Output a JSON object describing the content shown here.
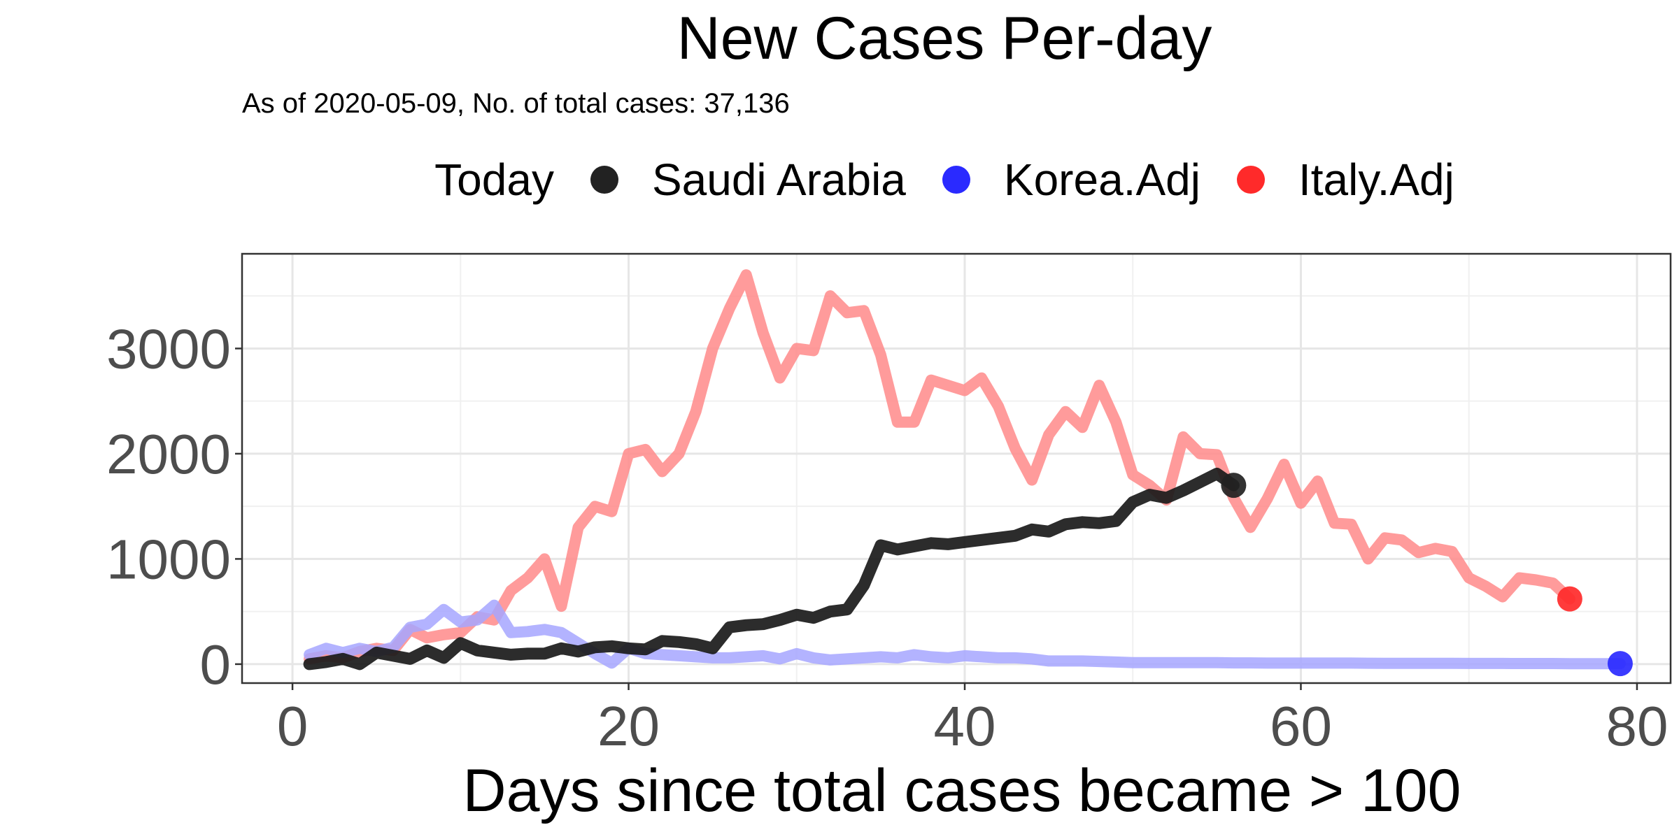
{
  "chart_data": {
    "type": "line",
    "title": "New Cases Per-day",
    "subtitle": "As of 2020-05-09, No. of total cases: 37,136",
    "xlabel": "Days since total cases became > 100",
    "ylabel": "",
    "xlim": [
      -3,
      82
    ],
    "ylim": [
      -180,
      3900
    ],
    "x_ticks": [
      0,
      20,
      40,
      60,
      80
    ],
    "y_ticks": [
      0,
      1000,
      2000,
      3000
    ],
    "grid": true,
    "legend": {
      "title": "Today",
      "position": "top"
    },
    "series": [
      {
        "name": "Italy.Adj",
        "color": "#ff8a8a",
        "marker_color": "#ff2a2a",
        "x": [
          1,
          2,
          3,
          4,
          5,
          6,
          7,
          8,
          9,
          10,
          11,
          12,
          13,
          14,
          15,
          16,
          17,
          18,
          19,
          20,
          21,
          22,
          23,
          24,
          25,
          26,
          27,
          28,
          29,
          30,
          31,
          32,
          33,
          34,
          35,
          36,
          37,
          38,
          39,
          40,
          41,
          42,
          43,
          44,
          45,
          46,
          47,
          48,
          49,
          50,
          51,
          52,
          53,
          54,
          55,
          56,
          57,
          58,
          59,
          60,
          61,
          62,
          63,
          64,
          65,
          66,
          67,
          68,
          69,
          70,
          71,
          72,
          73,
          74,
          75,
          76
        ],
        "values": [
          50,
          80,
          60,
          120,
          150,
          130,
          330,
          250,
          280,
          300,
          450,
          420,
          700,
          820,
          1000,
          550,
          1300,
          1500,
          1450,
          2000,
          2040,
          1830,
          2000,
          2400,
          3000,
          3380,
          3700,
          3150,
          2720,
          3000,
          2980,
          3500,
          3340,
          3360,
          2940,
          2300,
          2300,
          2700,
          2650,
          2600,
          2720,
          2450,
          2050,
          1750,
          2180,
          2400,
          2250,
          2650,
          2300,
          1800,
          1700,
          1560,
          2160,
          2000,
          1990,
          1580,
          1300,
          1570,
          1900,
          1530,
          1740,
          1340,
          1330,
          1000,
          1200,
          1180,
          1060,
          1100,
          1070,
          820,
          740,
          640,
          820,
          800,
          770,
          620
        ]
      },
      {
        "name": "Korea.Adj",
        "color": "#a6a6ff",
        "marker_color": "#2a2aff",
        "x": [
          1,
          2,
          3,
          4,
          5,
          6,
          7,
          8,
          9,
          10,
          11,
          12,
          13,
          14,
          15,
          16,
          17,
          18,
          19,
          20,
          21,
          22,
          23,
          24,
          25,
          26,
          27,
          28,
          29,
          30,
          31,
          32,
          33,
          34,
          35,
          36,
          37,
          38,
          39,
          40,
          41,
          42,
          43,
          44,
          45,
          46,
          47,
          48,
          49,
          50,
          51,
          52,
          53,
          54,
          55,
          56,
          57,
          58,
          59,
          60,
          61,
          62,
          63,
          64,
          65,
          66,
          67,
          68,
          69,
          70,
          71,
          72,
          73,
          74,
          75,
          76,
          77,
          78,
          79
        ],
        "values": [
          90,
          150,
          110,
          150,
          120,
          160,
          350,
          380,
          520,
          400,
          420,
          560,
          300,
          310,
          330,
          300,
          200,
          100,
          10,
          150,
          100,
          90,
          80,
          70,
          60,
          60,
          70,
          80,
          50,
          100,
          60,
          40,
          50,
          60,
          70,
          60,
          90,
          70,
          60,
          80,
          70,
          60,
          60,
          50,
          30,
          30,
          30,
          25,
          20,
          15,
          15,
          15,
          15,
          15,
          15,
          12,
          12,
          10,
          10,
          10,
          10,
          10,
          10,
          9,
          8,
          8,
          8,
          8,
          8,
          7,
          7,
          7,
          6,
          6,
          6,
          5,
          5,
          5,
          5
        ]
      },
      {
        "name": "Saudi Arabia",
        "color": "#1a1a1a",
        "marker_color": "#222222",
        "x": [
          1,
          2,
          3,
          4,
          5,
          6,
          7,
          8,
          9,
          10,
          11,
          12,
          13,
          14,
          15,
          16,
          17,
          18,
          19,
          20,
          21,
          22,
          23,
          24,
          25,
          26,
          27,
          28,
          29,
          30,
          31,
          32,
          33,
          34,
          35,
          36,
          37,
          38,
          39,
          40,
          41,
          42,
          43,
          44,
          45,
          46,
          47,
          48,
          49,
          50,
          51,
          52,
          53,
          54,
          55,
          56
        ],
        "values": [
          0,
          20,
          50,
          0,
          110,
          80,
          50,
          130,
          60,
          200,
          130,
          110,
          90,
          100,
          100,
          150,
          120,
          160,
          170,
          150,
          140,
          220,
          210,
          190,
          150,
          350,
          370,
          380,
          420,
          470,
          440,
          500,
          520,
          750,
          1130,
          1090,
          1120,
          1150,
          1140,
          1160,
          1180,
          1200,
          1220,
          1280,
          1260,
          1330,
          1350,
          1340,
          1360,
          1540,
          1610,
          1580,
          1650,
          1730,
          1810,
          1700
        ]
      }
    ]
  }
}
